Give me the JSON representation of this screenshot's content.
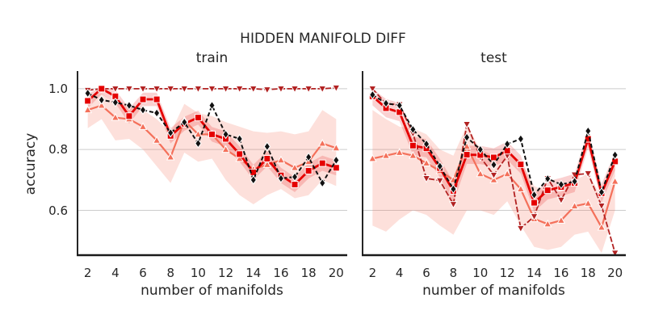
{
  "figure": {
    "suptitle": "HIDDEN MANIFOLD DIFF",
    "text_color": "#262626",
    "grid_color": "#cccccc",
    "spine_color": "#262626"
  },
  "chart_data": [
    {
      "type": "line",
      "title": "train",
      "xlabel": "number of manifolds",
      "ylabel": "accuracy",
      "x": [
        2,
        3,
        4,
        5,
        6,
        7,
        8,
        9,
        10,
        11,
        12,
        13,
        14,
        15,
        16,
        17,
        18,
        19,
        20
      ],
      "xticks": [
        "2",
        "4",
        "6",
        "8",
        "10",
        "12",
        "14",
        "16",
        "18",
        "20"
      ],
      "xtick_values": [
        2,
        4,
        6,
        8,
        10,
        12,
        14,
        16,
        18,
        20
      ],
      "yticks": [
        "1.0",
        "0.8",
        "0.6"
      ],
      "ytick_values": [
        1.0,
        0.8,
        0.6
      ],
      "xlim": [
        1.2,
        20.8
      ],
      "ylim": [
        0.45,
        1.058
      ],
      "grid": "horizontal-only",
      "legend": "none",
      "series": [
        {
          "name": "salmon-triangle-up",
          "color": "#F4705A",
          "linestyle": "solid",
          "linewidth": 2.2,
          "marker": "triangle-up",
          "values": [
            0.93,
            0.945,
            0.905,
            0.9,
            0.875,
            0.83,
            0.775,
            0.895,
            0.85,
            0.85,
            0.8,
            0.77,
            0.735,
            0.75,
            0.765,
            0.74,
            0.76,
            0.82,
            0.805
          ]
        },
        {
          "name": "firebrick-triangle-down",
          "color": "#B22222",
          "linestyle": "dashed",
          "linewidth": 1.8,
          "marker": "triangle-down",
          "values": [
            0.995,
            1.0,
            1.0,
            1.0,
            1.0,
            1.0,
            1.0,
            1.0,
            1.0,
            1.0,
            1.0,
            1.0,
            1.0,
            0.997,
            1.0,
            1.0,
            1.0,
            1.0,
            1.003
          ]
        },
        {
          "name": "red-square",
          "color": "#E50000",
          "linestyle": "solid",
          "linewidth": 2.8,
          "marker": "square",
          "values": [
            0.96,
            1.0,
            0.975,
            0.91,
            0.965,
            0.965,
            0.845,
            0.885,
            0.905,
            0.85,
            0.835,
            0.785,
            0.725,
            0.77,
            0.715,
            0.685,
            0.73,
            0.755,
            0.74
          ]
        },
        {
          "name": "black-diamond",
          "color": "#111111",
          "linestyle": "dashed",
          "linewidth": 2.0,
          "marker": "diamond",
          "values": [
            0.985,
            0.963,
            0.955,
            0.945,
            0.93,
            0.92,
            0.855,
            0.89,
            0.82,
            0.945,
            0.85,
            0.835,
            0.7,
            0.81,
            0.705,
            0.71,
            0.775,
            0.69,
            0.765
          ]
        }
      ],
      "bands": [
        {
          "name": "salmon-confidence-band",
          "color": "#F4705A",
          "opacity": 0.22,
          "lower": [
            0.87,
            0.9,
            0.83,
            0.835,
            0.8,
            0.745,
            0.69,
            0.79,
            0.76,
            0.77,
            0.7,
            0.65,
            0.62,
            0.65,
            0.67,
            0.64,
            0.65,
            0.7,
            0.68
          ],
          "upper": [
            0.97,
            0.985,
            0.95,
            0.945,
            0.93,
            0.9,
            0.855,
            0.95,
            0.92,
            0.91,
            0.89,
            0.875,
            0.86,
            0.855,
            0.86,
            0.85,
            0.86,
            0.93,
            0.9
          ]
        },
        {
          "name": "red-confidence-band",
          "color": "#E50000",
          "opacity": 0.18,
          "lower": [
            0.936,
            0.982,
            0.953,
            0.885,
            0.943,
            0.943,
            0.82,
            0.862,
            0.882,
            0.826,
            0.81,
            0.76,
            0.7,
            0.745,
            0.69,
            0.66,
            0.705,
            0.73,
            0.715
          ],
          "upper": [
            0.984,
            1.005,
            0.997,
            0.935,
            0.987,
            0.987,
            0.87,
            0.908,
            0.928,
            0.874,
            0.86,
            0.81,
            0.75,
            0.795,
            0.74,
            0.71,
            0.755,
            0.78,
            0.765
          ]
        }
      ]
    },
    {
      "type": "line",
      "title": "test",
      "xlabel": "number of manifolds",
      "ylabel": "accuracy",
      "x": [
        2,
        3,
        4,
        5,
        6,
        7,
        8,
        9,
        10,
        11,
        12,
        13,
        14,
        15,
        16,
        17,
        18,
        19,
        20
      ],
      "xticks": [
        "2",
        "4",
        "6",
        "8",
        "10",
        "12",
        "14",
        "16",
        "18",
        "20"
      ],
      "xtick_values": [
        2,
        4,
        6,
        8,
        10,
        12,
        14,
        16,
        18,
        20
      ],
      "yticks": [],
      "ytick_values": [],
      "xlim": [
        1.2,
        20.8
      ],
      "ylim": [
        0.45,
        1.058
      ],
      "grid": "horizontal-only",
      "legend": "none",
      "series": [
        {
          "name": "salmon-triangle-up",
          "color": "#F4705A",
          "linestyle": "solid",
          "linewidth": 2.2,
          "marker": "triangle-up",
          "values": [
            0.77,
            0.78,
            0.79,
            0.78,
            0.755,
            0.73,
            0.7,
            0.81,
            0.72,
            0.7,
            0.72,
            0.67,
            0.572,
            0.555,
            0.567,
            0.614,
            0.623,
            0.544,
            0.695
          ]
        },
        {
          "name": "firebrick-triangle-down",
          "color": "#B22222",
          "linestyle": "dashed",
          "linewidth": 1.8,
          "marker": "triangle-down",
          "values": [
            1.0,
            0.95,
            0.948,
            0.853,
            0.705,
            0.698,
            0.62,
            0.883,
            0.775,
            0.716,
            0.78,
            0.541,
            0.58,
            0.705,
            0.634,
            0.717,
            0.721,
            0.615,
            0.46
          ]
        },
        {
          "name": "red-square",
          "color": "#E50000",
          "linestyle": "solid",
          "linewidth": 2.8,
          "marker": "square",
          "values": [
            0.975,
            0.936,
            0.923,
            0.813,
            0.804,
            0.739,
            0.664,
            0.783,
            0.782,
            0.774,
            0.796,
            0.751,
            0.625,
            0.666,
            0.677,
            0.69,
            0.835,
            0.656,
            0.761
          ]
        },
        {
          "name": "black-diamond",
          "color": "#111111",
          "linestyle": "dashed",
          "linewidth": 2.0,
          "marker": "diamond",
          "values": [
            0.98,
            0.952,
            0.945,
            0.866,
            0.818,
            0.745,
            0.67,
            0.84,
            0.8,
            0.75,
            0.818,
            0.835,
            0.651,
            0.704,
            0.685,
            0.695,
            0.861,
            0.66,
            0.782
          ]
        }
      ],
      "bands": [
        {
          "name": "salmon-confidence-band",
          "color": "#F4705A",
          "opacity": 0.22,
          "lower": [
            0.55,
            0.53,
            0.57,
            0.6,
            0.585,
            0.55,
            0.52,
            0.6,
            0.6,
            0.585,
            0.63,
            0.55,
            0.48,
            0.47,
            0.48,
            0.52,
            0.53,
            0.46,
            0.6
          ],
          "upper": [
            0.93,
            0.9,
            0.875,
            0.87,
            0.85,
            0.8,
            0.78,
            0.88,
            0.8,
            0.78,
            0.8,
            0.76,
            0.68,
            0.66,
            0.66,
            0.7,
            0.72,
            0.645,
            0.79
          ]
        },
        {
          "name": "red-confidence-band",
          "color": "#E50000",
          "opacity": 0.18,
          "lower": [
            0.945,
            0.906,
            0.893,
            0.783,
            0.774,
            0.709,
            0.624,
            0.753,
            0.752,
            0.744,
            0.766,
            0.721,
            0.595,
            0.636,
            0.647,
            0.66,
            0.805,
            0.626,
            0.731
          ],
          "upper": [
            1.0,
            0.966,
            0.953,
            0.843,
            0.834,
            0.769,
            0.694,
            0.813,
            0.812,
            0.804,
            0.826,
            0.781,
            0.655,
            0.696,
            0.707,
            0.72,
            0.865,
            0.686,
            0.791
          ]
        }
      ]
    }
  ]
}
